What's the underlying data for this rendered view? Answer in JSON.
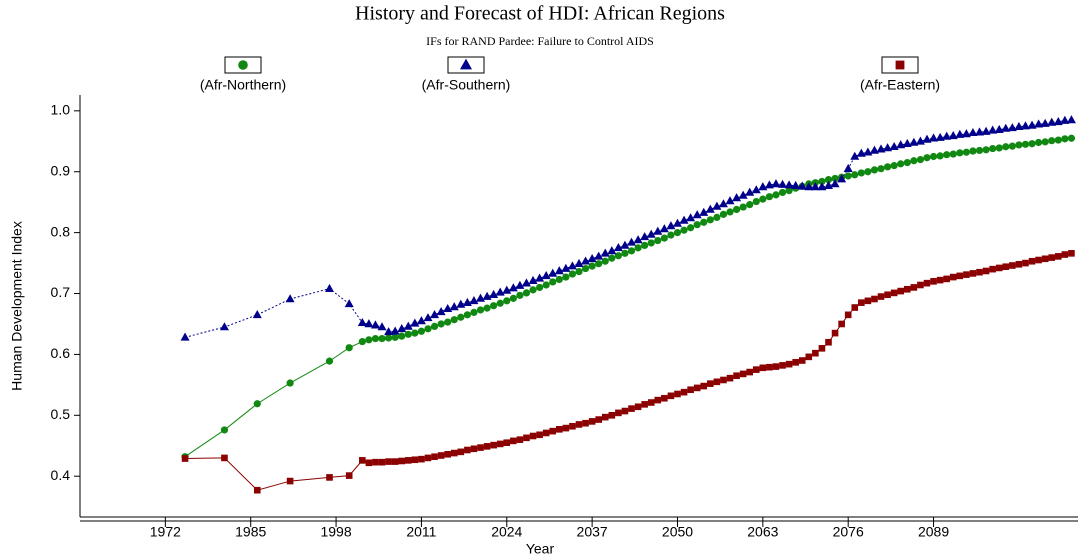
{
  "chart_data": {
    "type": "line",
    "title": "History and Forecast of HDI: African Regions",
    "subtitle": "IFs for RAND Pardee: Failure to Control AIDS",
    "xlabel": "Year",
    "ylabel": "Human Development Index",
    "xlim": [
      1959,
      2111
    ],
    "xticks": [
      1972,
      1985,
      1998,
      2011,
      2024,
      2037,
      2050,
      2063,
      2076,
      2089
    ],
    "ylim": [
      0.333,
      1.026
    ],
    "yticks": [
      0.4,
      0.5,
      0.6,
      0.7,
      0.8,
      0.9,
      {
        "value": 1,
        "label": "1.0"
      }
    ],
    "legend": "top",
    "x": [
      1975,
      1981,
      1986,
      1991,
      1997,
      2000,
      2002,
      2003,
      2004,
      2005,
      2006,
      2007,
      2008,
      2009,
      2010,
      2011,
      2012,
      2013,
      2014,
      2015,
      2016,
      2017,
      2018,
      2019,
      2020,
      2021,
      2022,
      2023,
      2024,
      2025,
      2026,
      2027,
      2028,
      2029,
      2030,
      2031,
      2032,
      2033,
      2034,
      2035,
      2036,
      2037,
      2038,
      2039,
      2040,
      2041,
      2042,
      2043,
      2044,
      2045,
      2046,
      2047,
      2048,
      2049,
      2050,
      2051,
      2052,
      2053,
      2054,
      2055,
      2056,
      2057,
      2058,
      2059,
      2060,
      2061,
      2062,
      2063,
      2064,
      2065,
      2066,
      2067,
      2068,
      2069,
      2070,
      2071,
      2072,
      2073,
      2074,
      2075,
      2076,
      2077,
      2078,
      2079,
      2080,
      2081,
      2082,
      2083,
      2084,
      2085,
      2086,
      2087,
      2088,
      2089,
      2090,
      2091,
      2092,
      2093,
      2094,
      2095,
      2096,
      2097,
      2098,
      2099,
      2100,
      2101,
      2102,
      2103,
      2104,
      2105,
      2106,
      2107,
      2108,
      2109,
      2110
    ],
    "series": [
      {
        "name": "(Afr-Northern)",
        "color": "#118811",
        "marker": "circle",
        "values": [
          0.432,
          0.476,
          0.519,
          0.553,
          0.589,
          0.611,
          0.621,
          0.624,
          0.626,
          0.626,
          0.627,
          0.628,
          0.63,
          0.633,
          0.635,
          0.638,
          0.642,
          0.646,
          0.65,
          0.653,
          0.657,
          0.661,
          0.665,
          0.669,
          0.673,
          0.676,
          0.68,
          0.684,
          0.688,
          0.692,
          0.697,
          0.701,
          0.706,
          0.71,
          0.714,
          0.719,
          0.723,
          0.727,
          0.732,
          0.736,
          0.741,
          0.745,
          0.749,
          0.753,
          0.758,
          0.762,
          0.766,
          0.77,
          0.775,
          0.779,
          0.783,
          0.787,
          0.791,
          0.796,
          0.8,
          0.804,
          0.808,
          0.813,
          0.817,
          0.821,
          0.825,
          0.83,
          0.834,
          0.838,
          0.842,
          0.846,
          0.851,
          0.855,
          0.859,
          0.862,
          0.866,
          0.869,
          0.873,
          0.876,
          0.88,
          0.882,
          0.884,
          0.887,
          0.889,
          0.891,
          0.893,
          0.895,
          0.898,
          0.9,
          0.903,
          0.905,
          0.908,
          0.91,
          0.913,
          0.915,
          0.918,
          0.92,
          0.923,
          0.925,
          0.926,
          0.928,
          0.929,
          0.931,
          0.932,
          0.934,
          0.935,
          0.936,
          0.938,
          0.939,
          0.941,
          0.942,
          0.944,
          0.945,
          0.946,
          0.948,
          0.949,
          0.951,
          0.952,
          0.954,
          0.955
        ]
      },
      {
        "name": "(Afr-Southern)",
        "color": "#00008b",
        "marker": "triangle",
        "values": [
          0.628,
          0.645,
          0.665,
          0.691,
          0.708,
          0.683,
          0.652,
          0.65,
          0.648,
          0.645,
          0.637,
          0.638,
          0.642,
          0.646,
          0.651,
          0.655,
          0.66,
          0.665,
          0.67,
          0.675,
          0.678,
          0.682,
          0.685,
          0.688,
          0.692,
          0.695,
          0.698,
          0.702,
          0.705,
          0.709,
          0.713,
          0.717,
          0.721,
          0.725,
          0.729,
          0.733,
          0.737,
          0.741,
          0.745,
          0.749,
          0.753,
          0.757,
          0.761,
          0.766,
          0.77,
          0.775,
          0.779,
          0.784,
          0.788,
          0.793,
          0.797,
          0.802,
          0.806,
          0.811,
          0.815,
          0.82,
          0.824,
          0.829,
          0.833,
          0.838,
          0.843,
          0.847,
          0.852,
          0.857,
          0.861,
          0.866,
          0.87,
          0.875,
          0.878,
          0.88,
          0.879,
          0.878,
          0.877,
          0.876,
          0.875,
          0.875,
          0.875,
          0.877,
          0.88,
          0.888,
          0.905,
          0.925,
          0.93,
          0.932,
          0.935,
          0.937,
          0.939,
          0.941,
          0.944,
          0.946,
          0.948,
          0.95,
          0.953,
          0.955,
          0.956,
          0.958,
          0.959,
          0.961,
          0.962,
          0.964,
          0.965,
          0.966,
          0.968,
          0.969,
          0.971,
          0.972,
          0.974,
          0.975,
          0.976,
          0.978,
          0.979,
          0.981,
          0.982,
          0.984,
          0.985
        ]
      },
      {
        "name": "(Afr-Eastern)",
        "color": "#8b0000",
        "marker": "square",
        "values": [
          0.429,
          0.43,
          0.377,
          0.392,
          0.398,
          0.401,
          0.426,
          0.422,
          0.423,
          0.423,
          0.424,
          0.424,
          0.425,
          0.426,
          0.427,
          0.428,
          0.43,
          0.432,
          0.434,
          0.436,
          0.438,
          0.44,
          0.443,
          0.445,
          0.447,
          0.449,
          0.451,
          0.453,
          0.455,
          0.458,
          0.46,
          0.463,
          0.466,
          0.468,
          0.471,
          0.474,
          0.477,
          0.479,
          0.482,
          0.485,
          0.487,
          0.49,
          0.493,
          0.497,
          0.5,
          0.504,
          0.507,
          0.511,
          0.514,
          0.518,
          0.521,
          0.525,
          0.528,
          0.532,
          0.535,
          0.538,
          0.542,
          0.545,
          0.548,
          0.552,
          0.555,
          0.558,
          0.561,
          0.565,
          0.568,
          0.571,
          0.575,
          0.578,
          0.579,
          0.58,
          0.582,
          0.584,
          0.587,
          0.59,
          0.596,
          0.602,
          0.61,
          0.62,
          0.635,
          0.65,
          0.665,
          0.677,
          0.685,
          0.688,
          0.691,
          0.695,
          0.698,
          0.701,
          0.704,
          0.707,
          0.71,
          0.714,
          0.717,
          0.72,
          0.722,
          0.724,
          0.727,
          0.729,
          0.731,
          0.733,
          0.735,
          0.737,
          0.74,
          0.742,
          0.744,
          0.746,
          0.748,
          0.75,
          0.753,
          0.755,
          0.757,
          0.759,
          0.761,
          0.764,
          0.766
        ]
      }
    ]
  }
}
